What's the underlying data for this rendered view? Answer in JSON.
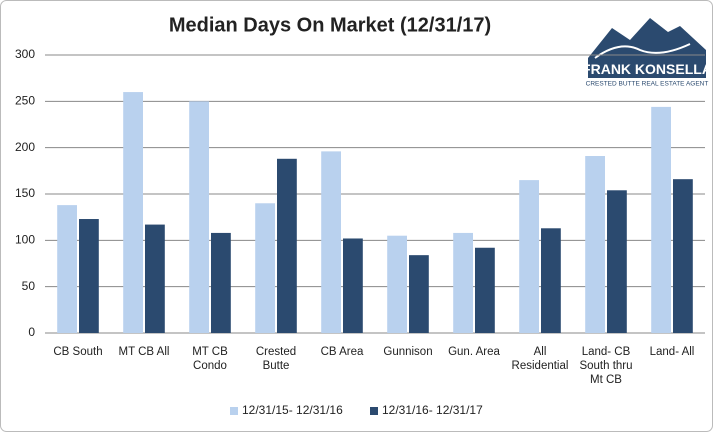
{
  "chart_data": {
    "type": "bar",
    "title": "Median Days On Market (12/31/17)",
    "categories": [
      "CB South",
      "MT CB All",
      "MT CB Condo",
      "Crested Butte",
      "CB Area",
      "Gunnison",
      "Gun. Area",
      "All Residential",
      "Land- CB South thru Mt CB",
      "Land- All"
    ],
    "series": [
      {
        "name": "12/31/15- 12/31/16",
        "color": "#b9d1ee",
        "values": [
          138,
          260,
          250,
          140,
          196,
          105,
          108,
          165,
          191,
          244
        ]
      },
      {
        "name": "12/31/16- 12/31/17",
        "color": "#2b4a6f",
        "values": [
          123,
          117,
          108,
          188,
          102,
          84,
          92,
          113,
          154,
          166
        ]
      }
    ],
    "ylim": [
      0,
      300
    ],
    "yticks": [
      0,
      50,
      100,
      150,
      200,
      250,
      300
    ],
    "grid": true,
    "legend": "bottom"
  },
  "logo": {
    "name": "FRANK KONSELLA",
    "tagline": "CRESTED BUTTE REAL ESTATE AGENT"
  }
}
